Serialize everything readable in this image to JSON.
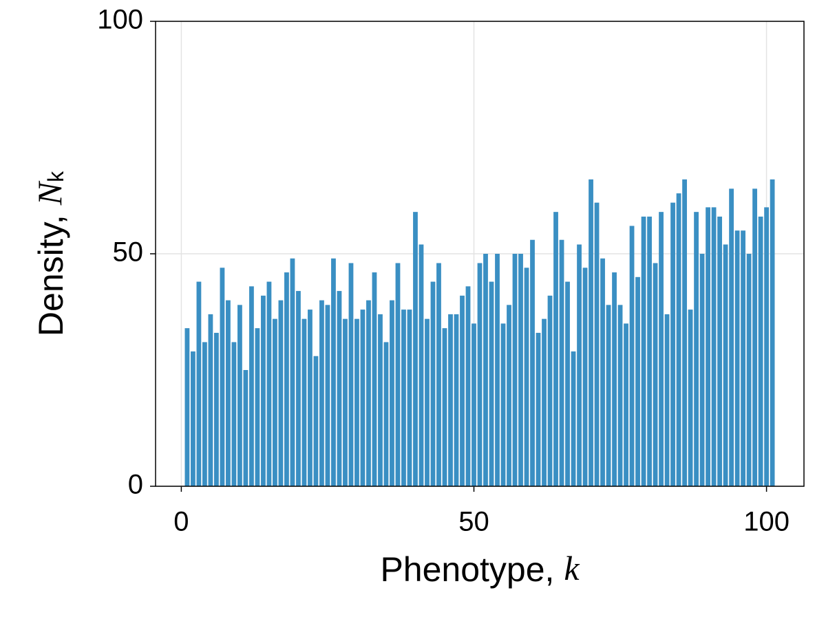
{
  "chart_data": {
    "type": "bar",
    "xlabel": [
      "Phenotype, ",
      "k"
    ],
    "ylabel": [
      "Density, ",
      "N",
      "k"
    ],
    "x": [
      1,
      2,
      3,
      4,
      5,
      6,
      7,
      8,
      9,
      10,
      11,
      12,
      13,
      14,
      15,
      16,
      17,
      18,
      19,
      20,
      21,
      22,
      23,
      24,
      25,
      26,
      27,
      28,
      29,
      30,
      31,
      32,
      33,
      34,
      35,
      36,
      37,
      38,
      39,
      40,
      41,
      42,
      43,
      44,
      45,
      46,
      47,
      48,
      49,
      50,
      51,
      52,
      53,
      54,
      55,
      56,
      57,
      58,
      59,
      60,
      61,
      62,
      63,
      64,
      65,
      66,
      67,
      68,
      69,
      70,
      71,
      72,
      73,
      74,
      75,
      76,
      77,
      78,
      79,
      80,
      81,
      82,
      83,
      84,
      85,
      86,
      87,
      88,
      89,
      90,
      91,
      92,
      93,
      94,
      95,
      96,
      97,
      98,
      99,
      100,
      101
    ],
    "values": [
      34,
      29,
      44,
      31,
      37,
      33,
      47,
      40,
      31,
      39,
      25,
      43,
      34,
      41,
      44,
      36,
      40,
      46,
      49,
      42,
      36,
      38,
      28,
      40,
      39,
      49,
      42,
      36,
      48,
      36,
      38,
      40,
      46,
      37,
      31,
      40,
      48,
      38,
      38,
      59,
      52,
      36,
      44,
      48,
      34,
      37,
      37,
      41,
      43,
      35,
      48,
      50,
      44,
      50,
      35,
      39,
      50,
      50,
      47,
      53,
      33,
      36,
      41,
      59,
      53,
      44,
      29,
      52,
      47,
      66,
      61,
      49,
      39,
      46,
      39,
      35,
      56,
      45,
      58,
      58,
      48,
      59,
      37,
      61,
      63,
      66,
      38,
      59,
      50,
      60,
      60,
      58,
      52,
      64,
      55,
      55,
      50,
      64,
      58,
      60,
      66
    ],
    "color": "#3a8fc3",
    "xlim": [
      -4.4,
      106.4
    ],
    "xticks": [
      0,
      50,
      100
    ],
    "ylim": [
      0,
      100
    ],
    "yticks": [
      0,
      50,
      100
    ],
    "grid": true
  }
}
